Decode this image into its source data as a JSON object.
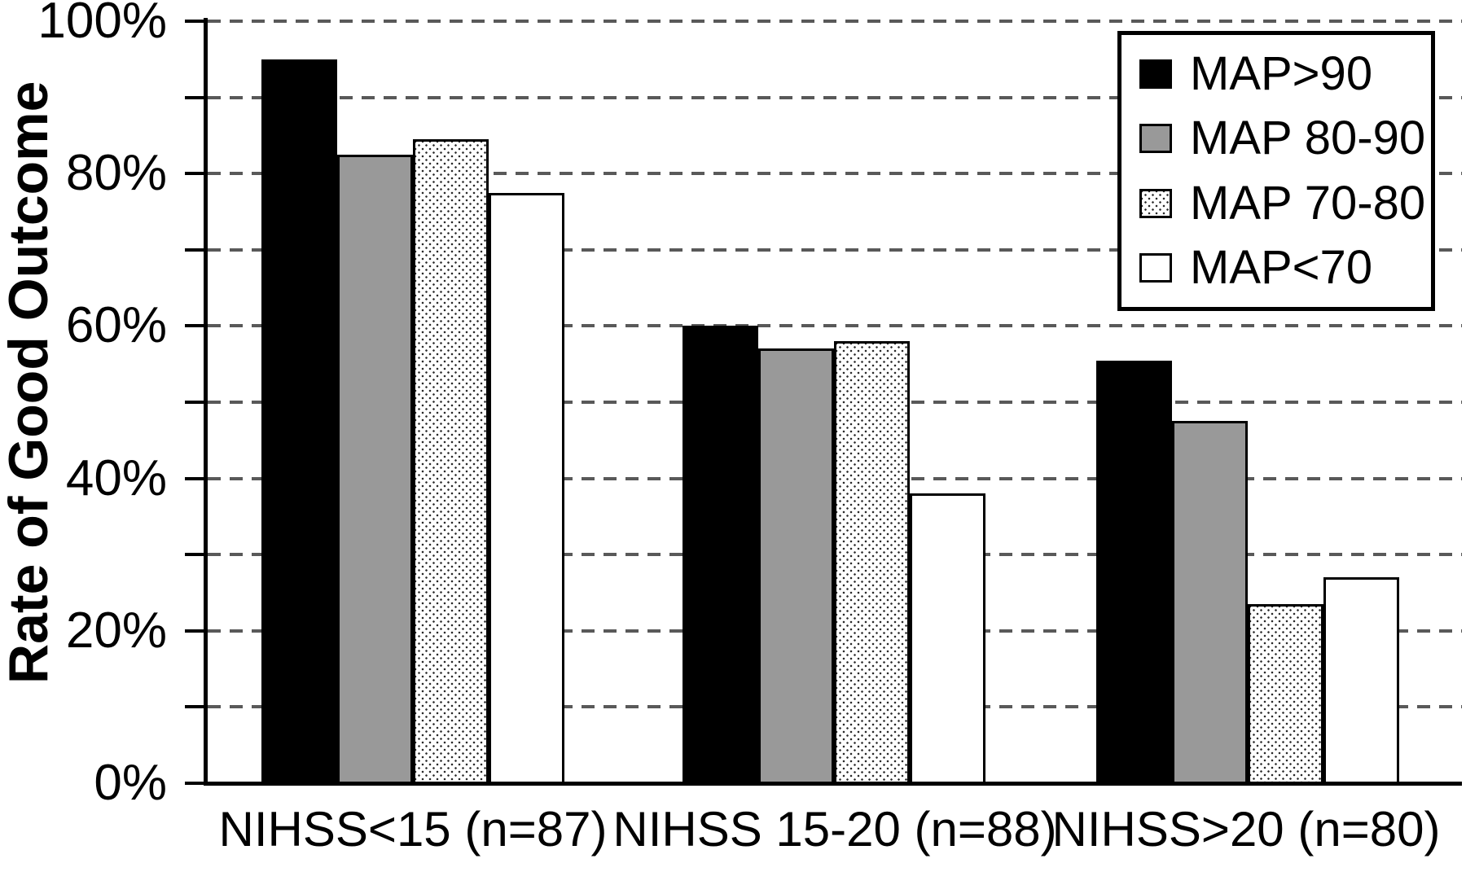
{
  "chart_data": {
    "type": "bar",
    "title": "",
    "xlabel": "",
    "ylabel": "Rate of Good Outcome",
    "categories": [
      "NIHSS<15 (n=87)",
      "NIHSS 15-20 (n=88)",
      "NIHSS>20 (n=80)"
    ],
    "series": [
      {
        "name": "MAP>90",
        "fill": "black",
        "values": [
          95,
          60,
          55.5
        ]
      },
      {
        "name": "MAP 80-90",
        "fill": "gray",
        "values": [
          82.5,
          57,
          47.5
        ]
      },
      {
        "name": "MAP 70-80",
        "fill": "dotted",
        "values": [
          84.5,
          58,
          23.5
        ]
      },
      {
        "name": "MAP<70",
        "fill": "white",
        "values": [
          77.5,
          38,
          27
        ]
      }
    ],
    "ylim": [
      0,
      100
    ],
    "y_tick_labels": [
      "0%",
      "20%",
      "40%",
      "60%",
      "80%",
      "100%"
    ],
    "y_label_step": 20,
    "grid_step": 10,
    "grid": "dashed-horizontal",
    "legend_position": "top-right",
    "colors": {
      "bar_black": "#000000",
      "bar_gray": "#999999",
      "bar_white": "#ffffff",
      "bar_dot": "#2a2a2a",
      "outline": "#000000",
      "grid": "#595959",
      "text": "#000000",
      "background": "#ffffff"
    }
  }
}
